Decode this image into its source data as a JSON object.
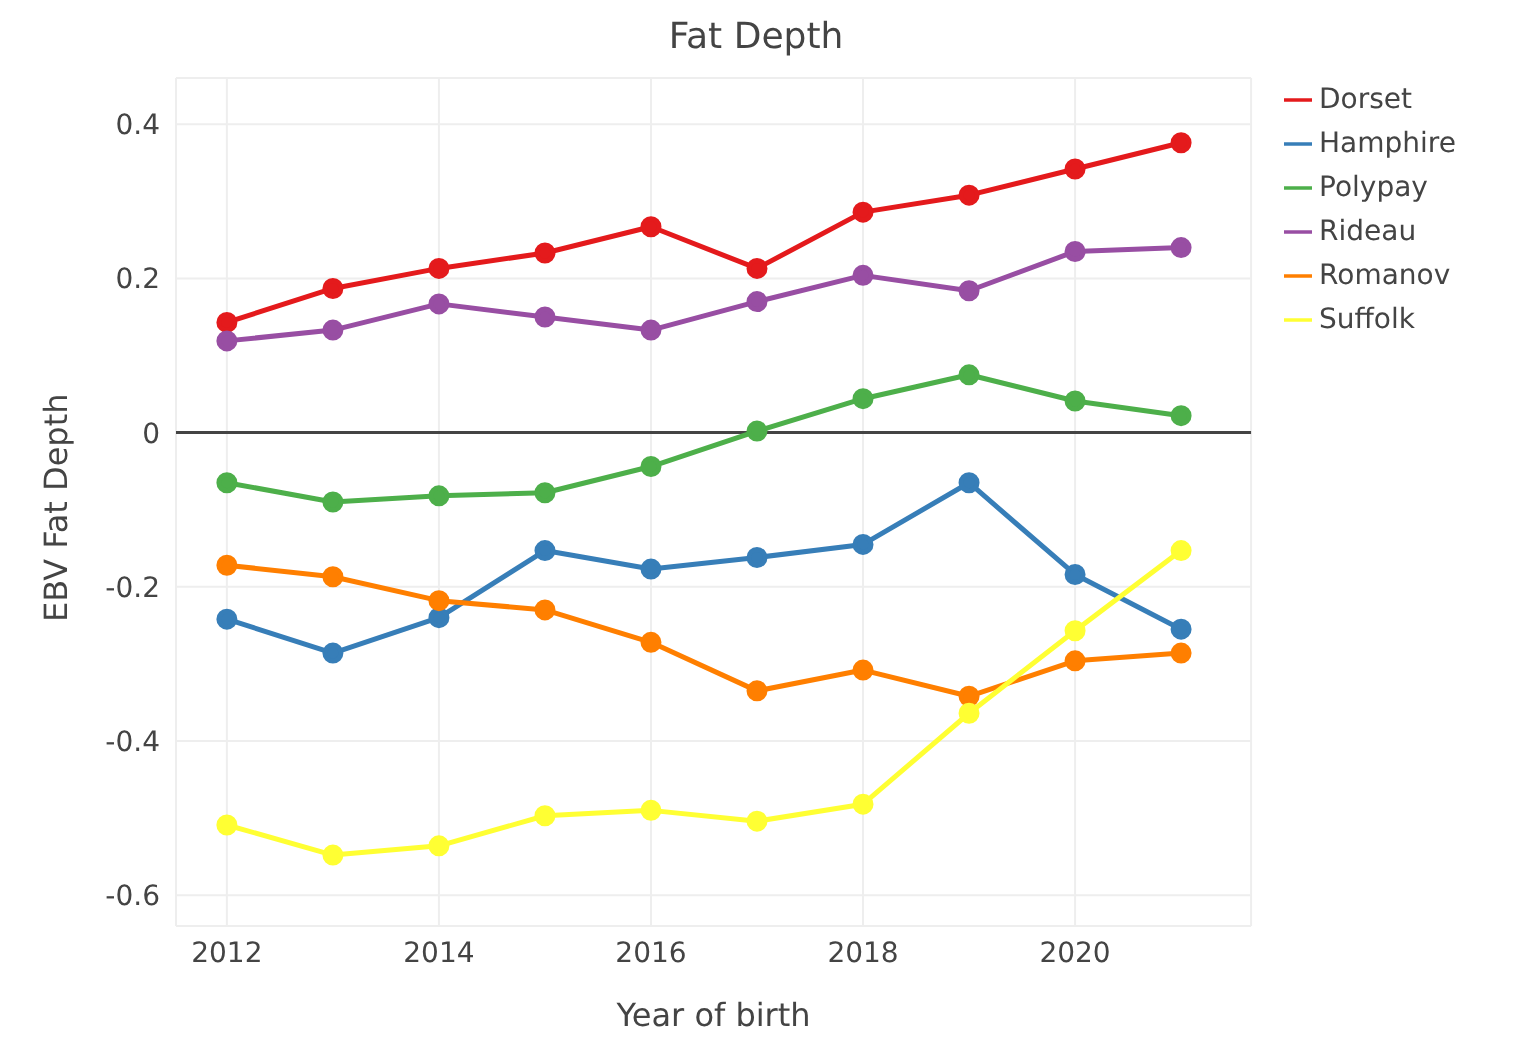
{
  "chart_data": {
    "type": "line",
    "title": "Fat Depth",
    "xlabel": "Year of birth",
    "ylabel": "EBV Fat Depth",
    "x": [
      2012,
      2013,
      2014,
      2015,
      2016,
      2017,
      2018,
      2019,
      2020,
      2021
    ],
    "series": [
      {
        "name": "Dorset",
        "color": "#e41a1c",
        "values": [
          0.143,
          0.187,
          0.213,
          0.233,
          0.267,
          0.213,
          0.286,
          0.308,
          0.342,
          0.376
        ]
      },
      {
        "name": "Hamphire",
        "color": "#377eb8",
        "values": [
          -0.242,
          -0.286,
          -0.24,
          -0.153,
          -0.177,
          -0.162,
          -0.145,
          -0.065,
          -0.184,
          -0.255
        ]
      },
      {
        "name": "Polypay",
        "color": "#4daf4a",
        "values": [
          -0.065,
          -0.09,
          -0.082,
          -0.078,
          -0.044,
          0.002,
          0.044,
          0.075,
          0.041,
          0.022
        ]
      },
      {
        "name": "Rideau",
        "color": "#984ea3",
        "values": [
          0.119,
          0.133,
          0.167,
          0.15,
          0.133,
          0.17,
          0.204,
          0.184,
          0.235,
          0.24
        ]
      },
      {
        "name": "Romanov",
        "color": "#ff7f00",
        "values": [
          -0.172,
          -0.187,
          -0.218,
          -0.23,
          -0.272,
          -0.335,
          -0.308,
          -0.342,
          -0.296,
          -0.286
        ]
      },
      {
        "name": "Suffolk",
        "color": "#ffff33",
        "values": [
          -0.509,
          -0.548,
          -0.536,
          -0.497,
          -0.49,
          -0.504,
          -0.482,
          -0.364,
          -0.257,
          -0.153
        ]
      }
    ],
    "xlim": [
      2011.52,
      2021.66
    ],
    "xticks": [
      2012,
      2014,
      2016,
      2018,
      2020
    ],
    "ylim": [
      -0.64,
      0.46
    ],
    "yticks": [
      -0.6,
      -0.4,
      -0.2,
      0,
      0.2,
      0.4
    ],
    "ref_lines": [
      {
        "axis": "y",
        "value": 0,
        "color": "#444444"
      }
    ],
    "grid": true,
    "legend": "top right",
    "marker": "circle",
    "line_style": "solid"
  }
}
